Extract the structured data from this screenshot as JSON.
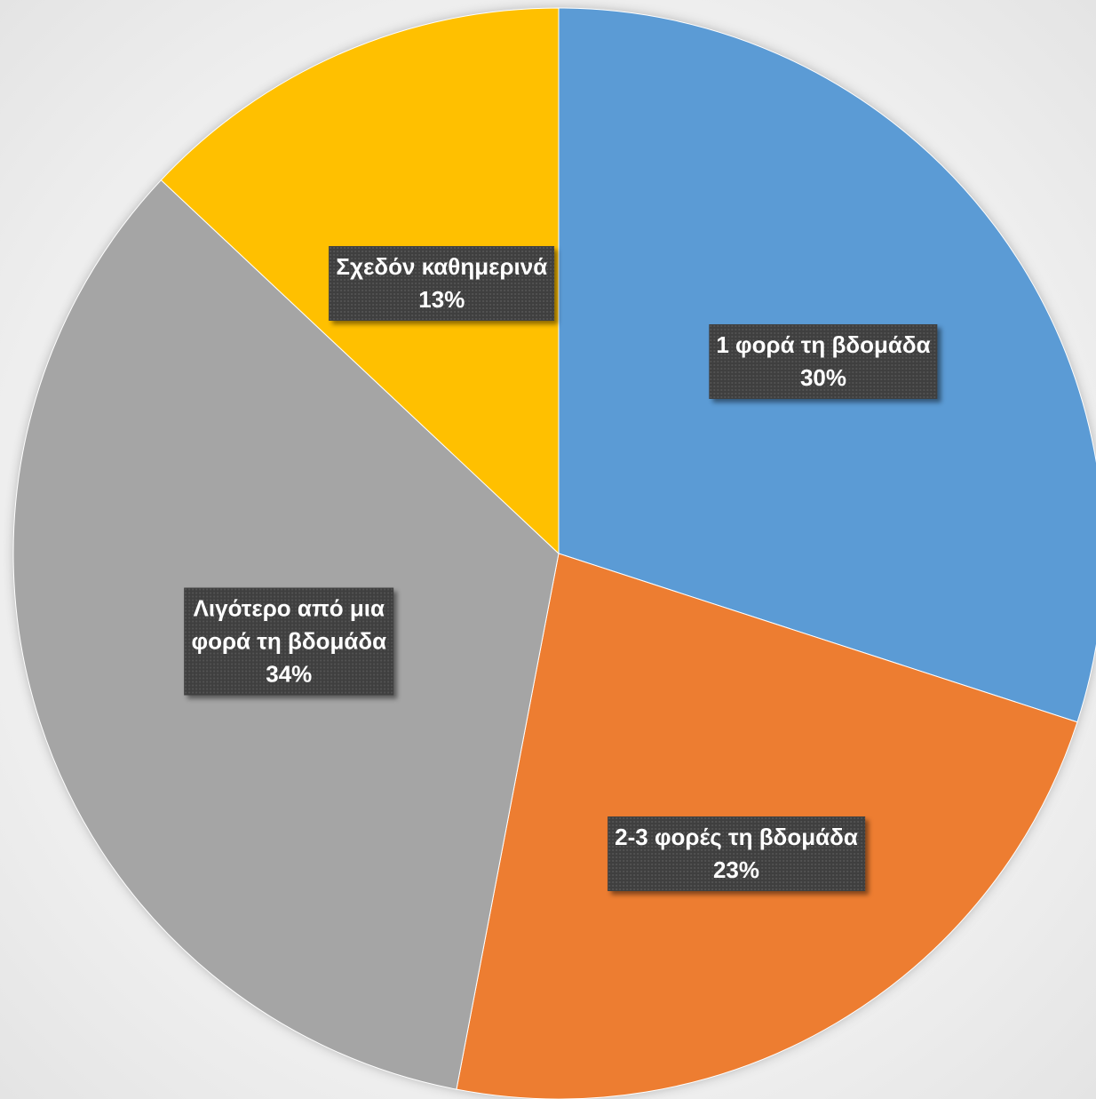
{
  "chart_data": {
    "type": "pie",
    "title": "",
    "start_angle": "12 o'clock",
    "direction": "clockwise",
    "legend": "none",
    "slices": [
      {
        "label": "1 φορά τη βδομάδα",
        "value": 30,
        "value_label": "30%",
        "color": "#5b9bd5"
      },
      {
        "label": "2-3 φορές τη βδομάδα",
        "value": 23,
        "value_label": "23%",
        "color": "#ed7d31"
      },
      {
        "label": "Λιγότερο από μια φορά τη βδομάδα",
        "value": 34,
        "value_label": "34%",
        "color": "#a5a5a5"
      },
      {
        "label": "Σχεδόν καθημερινά",
        "value": 13,
        "value_label": "13%",
        "color": "#ffc000"
      }
    ]
  }
}
